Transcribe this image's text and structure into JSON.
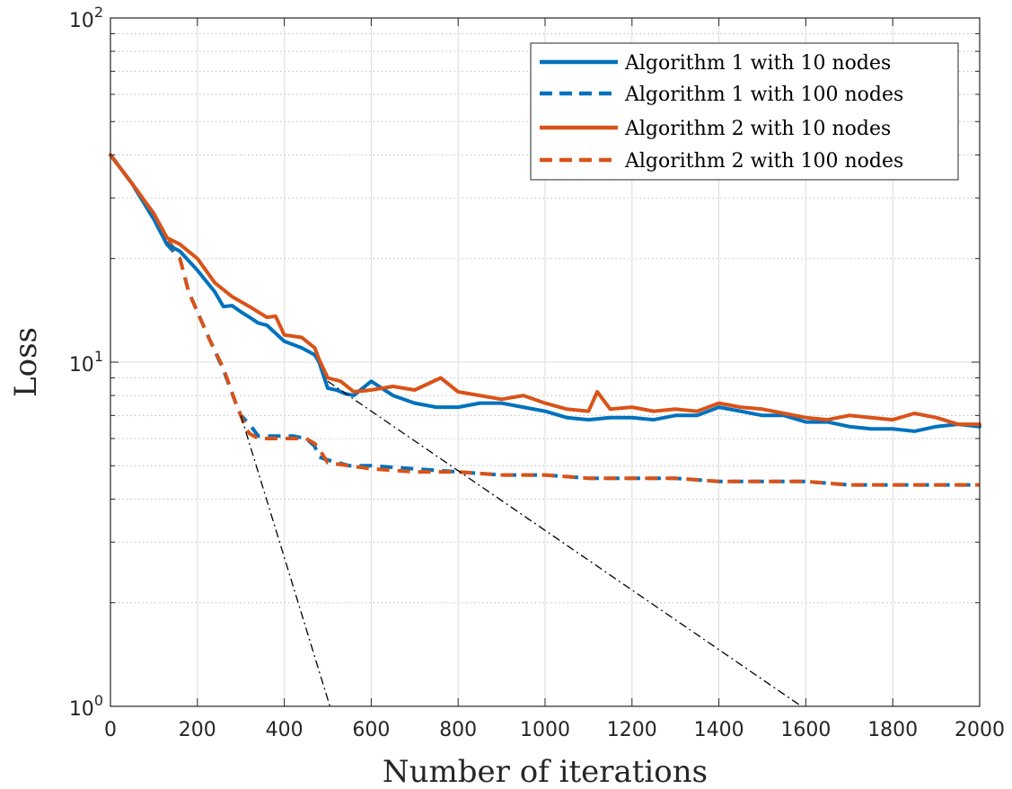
{
  "chart_data": {
    "type": "line",
    "title": "",
    "xlabel": "Number of iterations",
    "ylabel": "Loss",
    "xlim": [
      0,
      2000
    ],
    "ylim": [
      1,
      100
    ],
    "yscale": "log",
    "grid": true,
    "legend_position": "top-right",
    "x_ticks": [
      "0",
      "200",
      "400",
      "600",
      "800",
      "1000",
      "1200",
      "1400",
      "1600",
      "1800",
      "2000"
    ],
    "y_ticks": [
      {
        "base": "10",
        "exp": "0",
        "value": 1
      },
      {
        "base": "10",
        "exp": "1",
        "value": 10
      },
      {
        "base": "10",
        "exp": "2",
        "value": 100
      }
    ],
    "colors": {
      "blue": "#0072BD",
      "orange": "#D95319"
    },
    "series": [
      {
        "name": "Algorithm 1 with 10 nodes",
        "color": "#0072BD",
        "dash": "solid",
        "x": [
          0,
          50,
          100,
          130,
          160,
          200,
          240,
          260,
          280,
          300,
          320,
          340,
          360,
          400,
          440,
          470,
          480,
          500,
          520,
          540,
          560,
          600,
          650,
          700,
          750,
          800,
          850,
          900,
          950,
          1000,
          1050,
          1100,
          1150,
          1200,
          1250,
          1300,
          1350,
          1400,
          1450,
          1500,
          1550,
          1600,
          1650,
          1700,
          1750,
          1800,
          1850,
          1900,
          1950,
          2000
        ],
        "y": [
          40,
          33,
          26,
          22,
          21,
          18.5,
          16,
          14.5,
          14.6,
          14,
          13.5,
          13,
          12.8,
          11.5,
          11,
          10.5,
          10,
          8.4,
          8.3,
          8.1,
          8.0,
          8.8,
          8.0,
          7.6,
          7.4,
          7.4,
          7.6,
          7.6,
          7.4,
          7.2,
          6.9,
          6.8,
          6.9,
          6.9,
          6.8,
          7.0,
          7.0,
          7.4,
          7.2,
          7.0,
          7.0,
          6.7,
          6.7,
          6.5,
          6.4,
          6.4,
          6.3,
          6.5,
          6.6,
          6.5
        ]
      },
      {
        "name": "Algorithm 1 with 100 nodes",
        "color": "#0072BD",
        "dash": "dashed",
        "x": [
          0,
          50,
          100,
          130,
          160,
          180,
          200,
          230,
          260,
          290,
          300,
          310,
          320,
          340,
          380,
          420,
          450,
          470,
          480,
          500,
          550,
          600,
          700,
          800,
          900,
          1000,
          1100,
          1200,
          1300,
          1400,
          1500,
          1600,
          1700,
          1800,
          1900,
          2000
        ],
        "y": [
          40,
          33,
          26,
          22,
          20,
          16,
          14,
          11.5,
          9.5,
          7.5,
          7.0,
          6.8,
          6.6,
          6.1,
          6.1,
          6.1,
          6.0,
          5.7,
          5.3,
          5.2,
          5.0,
          5.0,
          4.9,
          4.8,
          4.7,
          4.7,
          4.6,
          4.6,
          4.6,
          4.5,
          4.5,
          4.5,
          4.4,
          4.4,
          4.4,
          4.4
        ]
      },
      {
        "name": "Algorithm 2 with 10 nodes",
        "color": "#D95319",
        "dash": "solid",
        "x": [
          0,
          50,
          100,
          130,
          160,
          200,
          240,
          280,
          320,
          360,
          380,
          400,
          440,
          470,
          480,
          500,
          530,
          560,
          600,
          650,
          700,
          760,
          800,
          850,
          900,
          950,
          1000,
          1050,
          1100,
          1120,
          1150,
          1200,
          1250,
          1300,
          1350,
          1400,
          1450,
          1500,
          1550,
          1600,
          1650,
          1700,
          1750,
          1800,
          1850,
          1900,
          1950,
          2000
        ],
        "y": [
          40,
          33,
          27,
          23,
          22,
          20,
          17,
          15.5,
          14.5,
          13.5,
          13.6,
          12,
          11.8,
          11,
          10.2,
          9.0,
          8.8,
          8.2,
          8.3,
          8.5,
          8.3,
          9.0,
          8.2,
          8.0,
          7.8,
          8.0,
          7.6,
          7.3,
          7.2,
          8.2,
          7.3,
          7.4,
          7.2,
          7.3,
          7.2,
          7.6,
          7.4,
          7.3,
          7.1,
          6.9,
          6.8,
          7.0,
          6.9,
          6.8,
          7.1,
          6.9,
          6.6,
          6.6
        ]
      },
      {
        "name": "Algorithm 2 with 100 nodes",
        "color": "#D95319",
        "dash": "dashed",
        "x": [
          0,
          50,
          100,
          130,
          160,
          180,
          200,
          230,
          260,
          290,
          300,
          310,
          320,
          340,
          380,
          420,
          450,
          470,
          480,
          500,
          550,
          600,
          700,
          800,
          900,
          1000,
          1100,
          1200,
          1300,
          1400,
          1500,
          1600,
          1700,
          1800,
          1900,
          2000
        ],
        "y": [
          40,
          33,
          27,
          23,
          20,
          16,
          14,
          11.5,
          9.6,
          7.5,
          7.0,
          6.5,
          6.2,
          6.0,
          6.0,
          6.0,
          6.0,
          5.8,
          5.6,
          5.1,
          5.0,
          4.9,
          4.8,
          4.8,
          4.7,
          4.7,
          4.6,
          4.6,
          4.6,
          4.5,
          4.5,
          4.5,
          4.4,
          4.4,
          4.4,
          4.4
        ]
      }
    ],
    "reference_lines": [
      {
        "x": [
          300,
          505
        ],
        "y": [
          7.0,
          1.0
        ]
      },
      {
        "x": [
          500,
          1590
        ],
        "y": [
          8.8,
          1.0
        ]
      }
    ]
  }
}
